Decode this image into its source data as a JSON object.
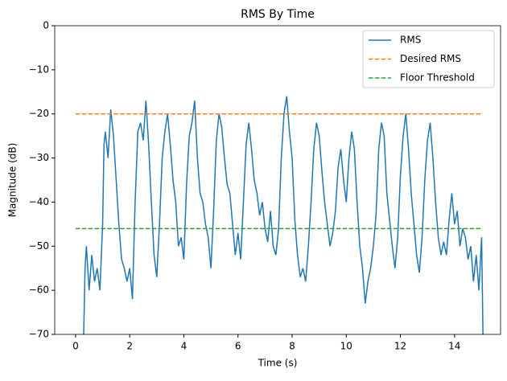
{
  "chart_data": {
    "type": "line",
    "title": "RMS By Time",
    "x_label": "Time (s)",
    "y_label": "Magnitude (dB)",
    "xlim": [
      -0.77,
      15.7
    ],
    "ylim": [
      -70,
      0
    ],
    "xticks": [
      0,
      2,
      4,
      6,
      8,
      10,
      12,
      14
    ],
    "yticks": [
      0,
      {
        "value": -10,
        "label": "−10"
      },
      {
        "value": -20,
        "label": "−20"
      },
      {
        "value": -30,
        "label": "−30"
      },
      {
        "value": -40,
        "label": "−40"
      },
      {
        "value": -50,
        "label": "−50"
      },
      {
        "value": -60,
        "label": "−60"
      },
      {
        "value": -70,
        "label": "−70"
      }
    ],
    "legend": "upper right",
    "series": [
      {
        "name": "RMS",
        "color": "#1f77b4",
        "dash": false,
        "x": [
          0.3,
          0.35,
          0.4,
          0.5,
          0.6,
          0.7,
          0.8,
          0.9,
          1.0,
          1.05,
          1.1,
          1.2,
          1.3,
          1.4,
          1.5,
          1.6,
          1.7,
          1.8,
          1.9,
          2.0,
          2.1,
          2.2,
          2.3,
          2.4,
          2.5,
          2.6,
          2.7,
          2.8,
          2.9,
          3.0,
          3.1,
          3.2,
          3.3,
          3.4,
          3.5,
          3.6,
          3.7,
          3.8,
          3.9,
          4.0,
          4.1,
          4.2,
          4.3,
          4.4,
          4.5,
          4.6,
          4.7,
          4.8,
          4.9,
          5.0,
          5.1,
          5.2,
          5.3,
          5.4,
          5.5,
          5.6,
          5.7,
          5.8,
          5.9,
          6.0,
          6.1,
          6.2,
          6.3,
          6.4,
          6.5,
          6.6,
          6.7,
          6.8,
          6.9,
          7.0,
          7.1,
          7.2,
          7.3,
          7.4,
          7.5,
          7.6,
          7.7,
          7.8,
          7.9,
          8.0,
          8.1,
          8.2,
          8.3,
          8.4,
          8.5,
          8.6,
          8.7,
          8.8,
          8.9,
          9.0,
          9.1,
          9.2,
          9.3,
          9.4,
          9.5,
          9.6,
          9.7,
          9.8,
          9.9,
          10.0,
          10.1,
          10.2,
          10.3,
          10.4,
          10.5,
          10.6,
          10.7,
          10.8,
          10.9,
          11.0,
          11.1,
          11.2,
          11.3,
          11.4,
          11.5,
          11.6,
          11.7,
          11.8,
          11.9,
          12.0,
          12.1,
          12.2,
          12.3,
          12.4,
          12.5,
          12.6,
          12.7,
          12.8,
          12.9,
          13.0,
          13.1,
          13.2,
          13.3,
          13.4,
          13.5,
          13.6,
          13.7,
          13.8,
          13.9,
          14.0,
          14.1,
          14.2,
          14.3,
          14.4,
          14.5,
          14.6,
          14.7,
          14.8,
          14.9,
          15.0,
          15.05
        ],
        "values": [
          -70,
          -55,
          -50,
          -60,
          -52,
          -58,
          -55,
          -60,
          -45,
          -27,
          -24,
          -30,
          -19,
          -25,
          -35,
          -45,
          -53,
          -55,
          -58,
          -55,
          -62,
          -40,
          -24,
          -22,
          -26,
          -17,
          -27,
          -40,
          -52,
          -57,
          -45,
          -30,
          -24,
          -20,
          -27,
          -35,
          -40,
          -50,
          -48,
          -53,
          -36,
          -25,
          -22,
          -17,
          -30,
          -38,
          -40,
          -45,
          -48,
          -55,
          -42,
          -26,
          -20,
          -23,
          -30,
          -36,
          -38,
          -45,
          -52,
          -47,
          -53,
          -40,
          -27,
          -22,
          -28,
          -35,
          -38,
          -43,
          -40,
          -46,
          -49,
          -42,
          -50,
          -52,
          -46,
          -30,
          -20,
          -16,
          -24,
          -30,
          -44,
          -52,
          -57,
          -55,
          -58,
          -50,
          -40,
          -28,
          -22,
          -25,
          -33,
          -40,
          -45,
          -50,
          -47,
          -42,
          -32,
          -28,
          -35,
          -40,
          -30,
          -24,
          -28,
          -40,
          -50,
          -55,
          -63,
          -58,
          -55,
          -50,
          -43,
          -28,
          -22,
          -25,
          -38,
          -44,
          -50,
          -55,
          -48,
          -34,
          -25,
          -20,
          -28,
          -38,
          -45,
          -52,
          -56,
          -48,
          -35,
          -26,
          -22,
          -30,
          -40,
          -48,
          -52,
          -49,
          -52,
          -44,
          -38,
          -45,
          -42,
          -50,
          -46,
          -48,
          -53,
          -50,
          -58,
          -52,
          -60,
          -48,
          -70
        ]
      },
      {
        "name": "Desired RMS",
        "color": "#ff7f0e",
        "dash": true,
        "x": [
          0,
          15
        ],
        "values": [
          -20,
          -20
        ]
      },
      {
        "name": "Floor Threshold",
        "color": "#2ca02c",
        "dash": true,
        "x": [
          0,
          15
        ],
        "values": [
          -46,
          -46
        ]
      }
    ]
  }
}
